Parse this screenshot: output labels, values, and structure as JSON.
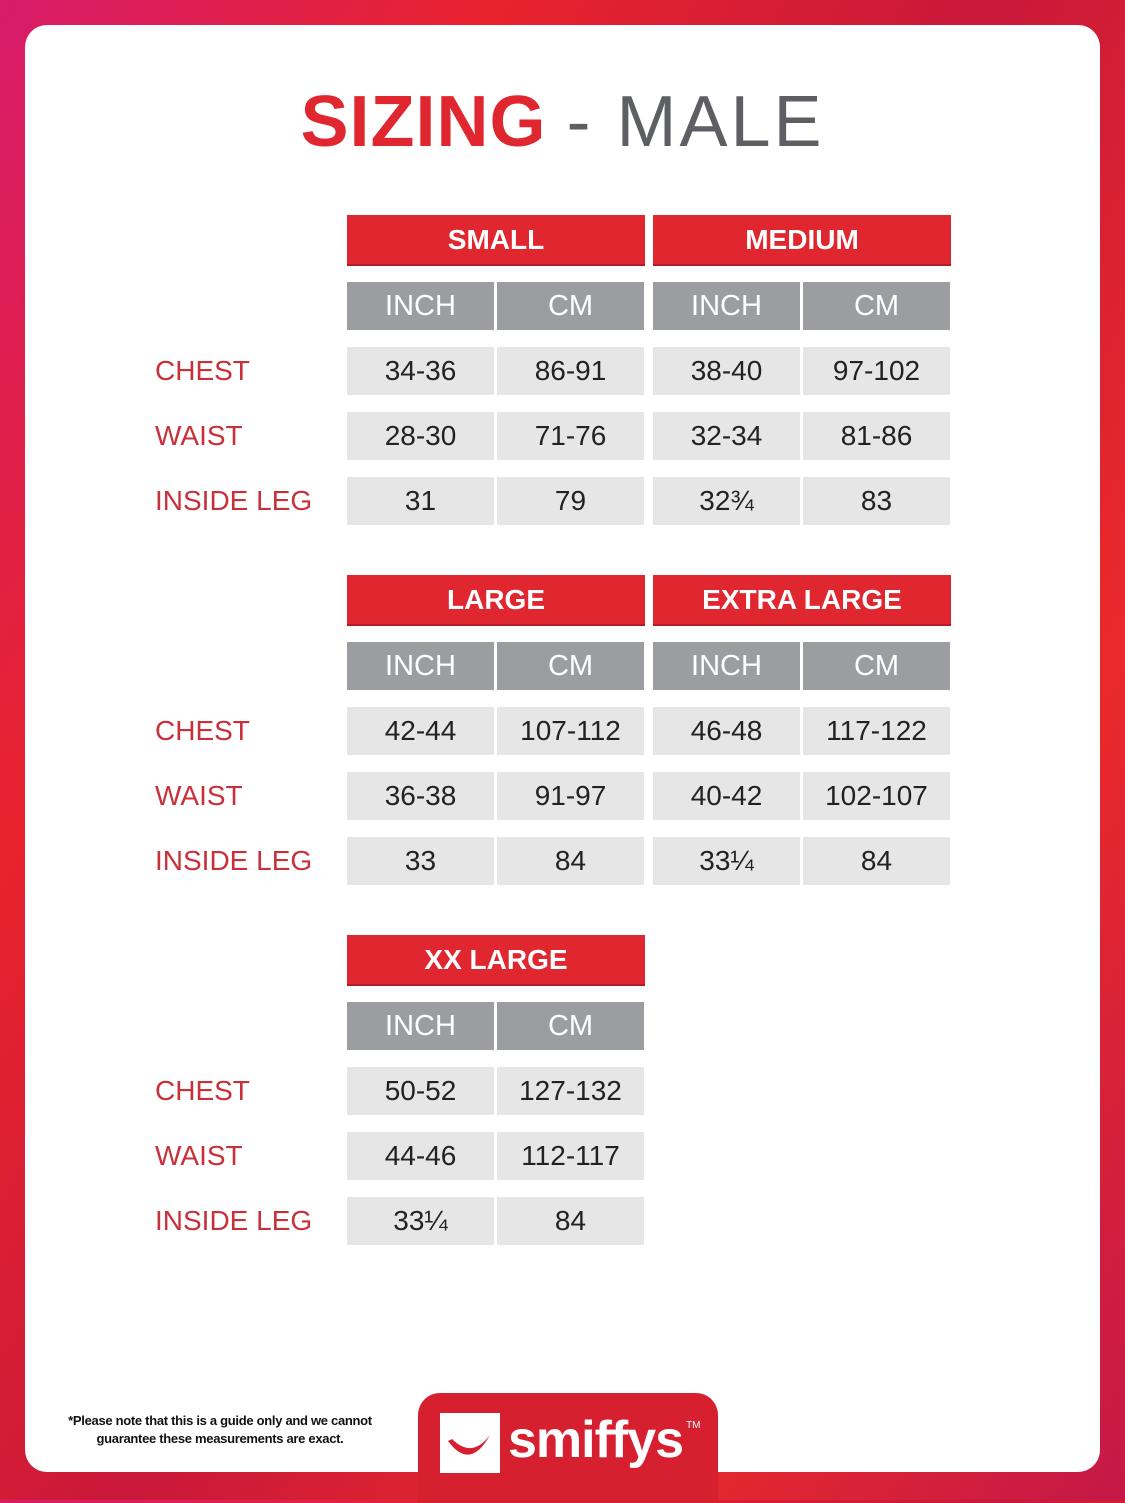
{
  "title": {
    "bold": "SIZING",
    "rest": "- MALE"
  },
  "row_labels": [
    "CHEST",
    "WAIST",
    "INSIDE LEG"
  ],
  "unit_labels": [
    "INCH",
    "CM"
  ],
  "blocks": [
    {
      "sizes": [
        {
          "name": "SMALL",
          "rows": [
            [
              "34-36",
              "86-91"
            ],
            [
              "28-30",
              "71-76"
            ],
            [
              "31",
              "79"
            ]
          ]
        },
        {
          "name": "MEDIUM",
          "rows": [
            [
              "38-40",
              "97-102"
            ],
            [
              "32-34",
              "81-86"
            ],
            [
              "32¾",
              "83"
            ]
          ]
        }
      ]
    },
    {
      "sizes": [
        {
          "name": "LARGE",
          "rows": [
            [
              "42-44",
              "107-112"
            ],
            [
              "36-38",
              "91-97"
            ],
            [
              "33",
              "84"
            ]
          ]
        },
        {
          "name": "EXTRA LARGE",
          "rows": [
            [
              "46-48",
              "117-122"
            ],
            [
              "40-42",
              "102-107"
            ],
            [
              "33¼",
              "84"
            ]
          ]
        }
      ]
    },
    {
      "sizes": [
        {
          "name": "XX LARGE",
          "rows": [
            [
              "50-52",
              "127-132"
            ],
            [
              "44-46",
              "112-117"
            ],
            [
              "33¼",
              "84"
            ]
          ]
        }
      ]
    }
  ],
  "footnote": {
    "line1": "*Please note that this is a guide only and we cannot",
    "line2": "guarantee these measurements are exact."
  },
  "logo": {
    "text": "smiffys",
    "tm": "TM"
  },
  "colors": {
    "accent": "#e0262f",
    "header_gray": "#9b9da0",
    "cell": "#e6e6e6",
    "label": "#c8303a"
  }
}
